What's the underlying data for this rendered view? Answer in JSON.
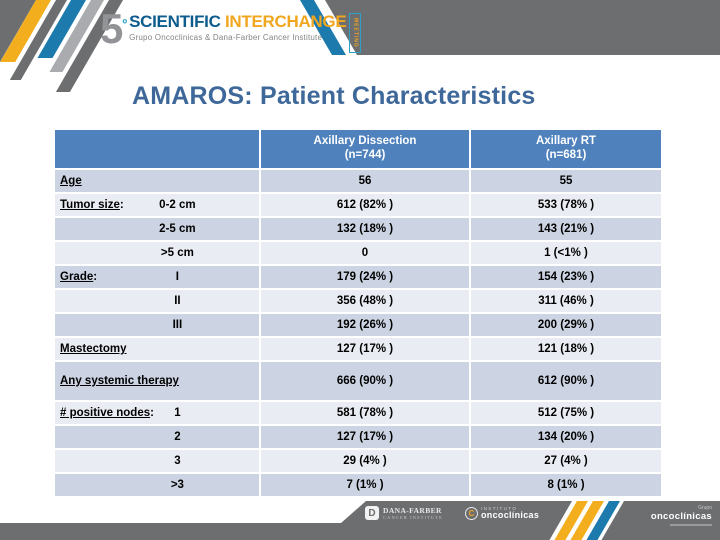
{
  "logo": {
    "number": "5",
    "ordinal": "º",
    "title_part1": "SCIENTIFIC ",
    "title_part2": "INTERCHANGE",
    "subtitle": "Grupo Oncoclinicas & Dana-Farber Cancer Institute",
    "meeting_tab": "MEETING"
  },
  "slide": {
    "title": "AMAROS: Patient Characteristics"
  },
  "table": {
    "header": {
      "col2_line1": "Axillary Dissection",
      "col2_line2": "(n=744)",
      "col3_line1": "Axillary RT",
      "col3_line2": "(n=681)"
    },
    "rows": [
      {
        "label": "Age",
        "colon": "",
        "sub": "",
        "v1": "56",
        "v2": "55"
      },
      {
        "label": "Tumor size",
        "colon": ":",
        "sub": "0-2 cm",
        "v1": "612 (82% )",
        "v2": "533 (78% )"
      },
      {
        "label": "",
        "colon": "",
        "sub": "2-5 cm",
        "v1": "132 (18% )",
        "v2": "143 (21% )"
      },
      {
        "label": "",
        "colon": "",
        "sub": ">5 cm",
        "v1": "0",
        "v2": "1 (<1% )"
      },
      {
        "label": "Grade",
        "colon": ":",
        "sub": "I",
        "v1": "179 (24% )",
        "v2": "154 (23% )"
      },
      {
        "label": "",
        "colon": "",
        "sub": "II",
        "v1": "356 (48% )",
        "v2": "311 (46% )"
      },
      {
        "label": "",
        "colon": "",
        "sub": "III",
        "v1": "192 (26% )",
        "v2": "200 (29% )"
      },
      {
        "label": "Mastectomy",
        "colon": "",
        "sub": "",
        "v1": "127 (17% )",
        "v2": "121 (18% )"
      },
      {
        "label": "Any systemic therapy",
        "colon": "",
        "sub": "",
        "v1": "666 (90% )",
        "v2": "612 (90% )"
      },
      {
        "label": "# positive nodes",
        "colon": ":",
        "sub": "1",
        "v1": "581 (78% )",
        "v2": "512 (75% )"
      },
      {
        "label": "",
        "colon": "",
        "sub": "2",
        "v1": "127 (17% )",
        "v2": "134 (20% )"
      },
      {
        "label": "",
        "colon": "",
        "sub": "3",
        "v1": "29 (4% )",
        "v2": "27 (4% )"
      },
      {
        "label": "",
        "colon": "",
        "sub": ">3",
        "v1": "7 (1% )",
        "v2": "8 (1% )"
      }
    ]
  },
  "footer": {
    "dana_farber": {
      "icon": "D",
      "line1": "DANA-FARBER",
      "line2": "CANCER INSTITUTE"
    },
    "instituto": {
      "icon": "C",
      "line1": "INSTITUTO",
      "line2": "oncoclínicas"
    },
    "grupo": {
      "line1": "Grupo",
      "line2": "oncoclínicas"
    }
  },
  "colors": {
    "header_blue": "#4f81bd",
    "row_dark": "#ccd4e3",
    "row_light": "#e9ecf3",
    "title_blue": "#3e6899",
    "band_gray": "#6d6e70",
    "accent_yellow": "#f2ae1c",
    "accent_blue": "#1d7aad"
  }
}
